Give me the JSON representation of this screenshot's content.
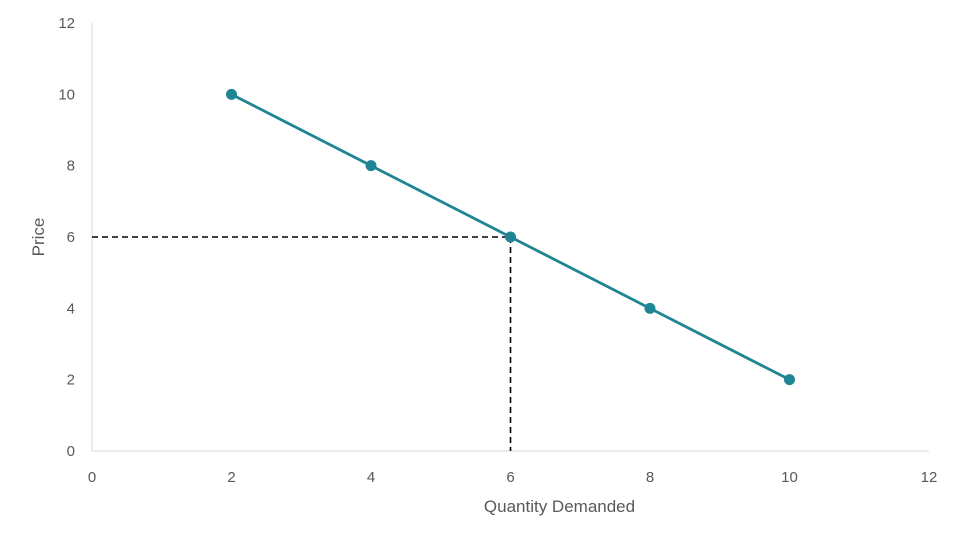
{
  "chart_data": {
    "type": "scatter",
    "title": "",
    "xlabel": "Quantity Demanded",
    "ylabel": "Price",
    "xlim": [
      0,
      12
    ],
    "ylim": [
      0,
      12
    ],
    "xticks": [
      "0",
      "2",
      "4",
      "6",
      "8",
      "10",
      "12"
    ],
    "yticks": [
      "0",
      "2",
      "4",
      "6",
      "8",
      "10",
      "12"
    ],
    "grid": false,
    "legend": "none",
    "series": [
      {
        "x": [
          2,
          4,
          6,
          8,
          10
        ],
        "y": [
          10,
          8,
          6,
          4,
          2
        ],
        "color": "#1F8592",
        "style": "line-with-markers"
      }
    ],
    "guide_point": {
      "x": 6,
      "y": 6,
      "style": "dashed",
      "color": "#000000"
    }
  }
}
